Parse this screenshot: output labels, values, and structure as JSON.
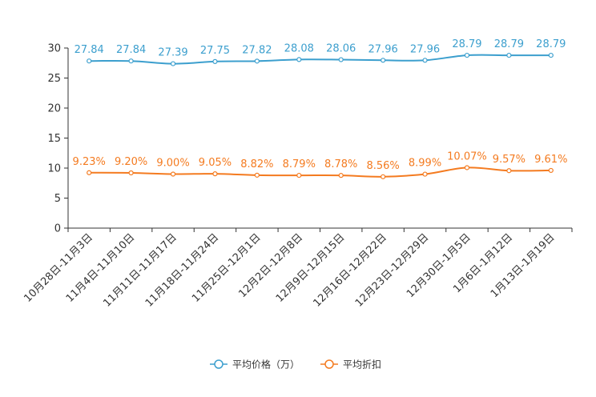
{
  "chart_data": {
    "type": "line",
    "title": "",
    "xlabel": "",
    "ylabel": "",
    "ylim": [
      0,
      30
    ],
    "yticks": [
      0,
      5,
      10,
      15,
      20,
      25,
      30
    ],
    "grid": false,
    "legend_position": "bottom-center",
    "categories": [
      "10月28日-11月3日",
      "11月4日-11月10日",
      "11月11日-11月17日",
      "11月18日-11月24日",
      "11月25日-12月1日",
      "12月2日-12月8日",
      "12月9日-12月15日",
      "12月16日-12月22日",
      "12月23日-12月29日",
      "12月30日-1月5日",
      "1月6日-1月12日",
      "1月13日-1月19日"
    ],
    "series": [
      {
        "name": "平均价格（万）",
        "color": "#3c9fce",
        "values": [
          27.84,
          27.84,
          27.39,
          27.75,
          27.82,
          28.08,
          28.06,
          27.96,
          27.96,
          28.79,
          28.79,
          28.79
        ],
        "labels": [
          "27.84",
          "27.84",
          "27.39",
          "27.75",
          "27.82",
          "28.08",
          "28.06",
          "27.96",
          "27.96",
          "28.79",
          "28.79",
          "28.79"
        ]
      },
      {
        "name": "平均折扣",
        "color": "#f47b20",
        "values": [
          9.23,
          9.2,
          9.0,
          9.05,
          8.82,
          8.79,
          8.78,
          8.56,
          8.99,
          10.07,
          9.57,
          9.61
        ],
        "labels": [
          "9.23%",
          "9.20%",
          "9.00%",
          "9.05%",
          "8.82%",
          "8.79%",
          "8.78%",
          "8.56%",
          "8.99%",
          "10.07%",
          "9.57%",
          "9.61%"
        ]
      }
    ]
  }
}
